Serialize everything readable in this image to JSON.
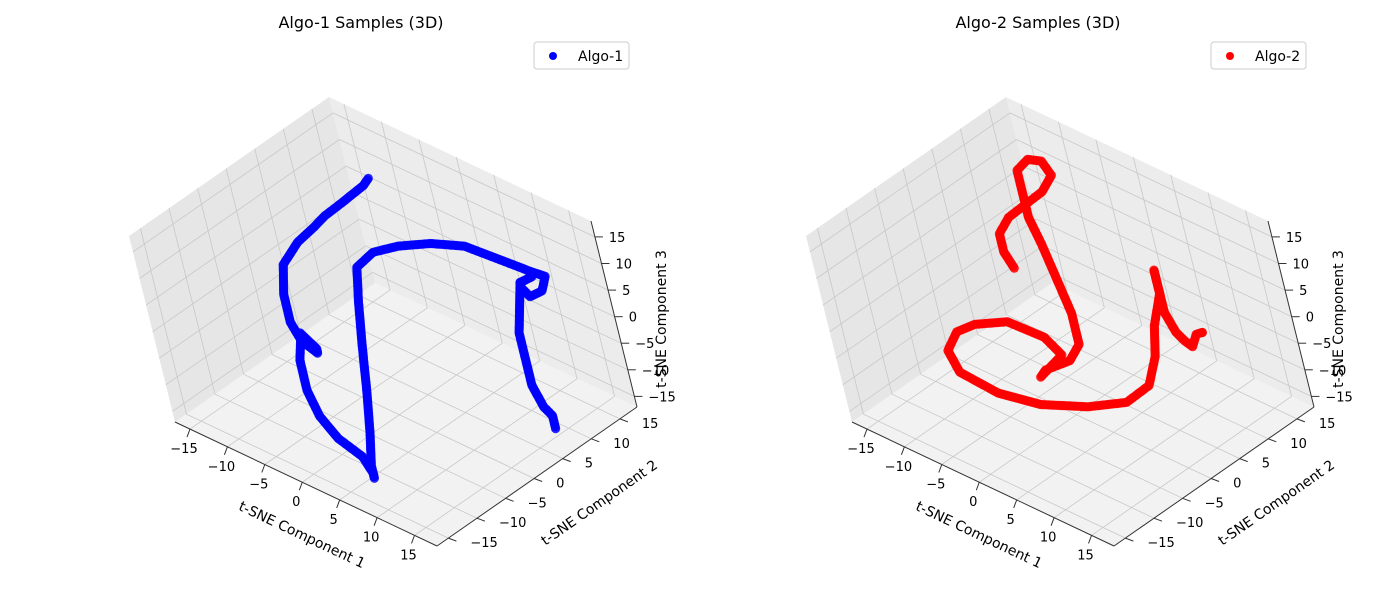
{
  "figure": {
    "background": "#ffffff"
  },
  "chart_data": [
    {
      "type": "scatter",
      "projection": "3d",
      "title": "Algo-1 Samples (3D)",
      "xlabel": "t-SNE Component 1",
      "ylabel": "t-SNE Component 2",
      "zlabel": "t-SNE Component 3",
      "xlim": [
        -17,
        18
      ],
      "ylim": [
        -17,
        18
      ],
      "zlim": [
        -17,
        18
      ],
      "xticks": [
        -15,
        -10,
        -5,
        0,
        5,
        10,
        15
      ],
      "yticks": [
        -15,
        -10,
        -5,
        0,
        5,
        10,
        15
      ],
      "zticks": [
        -15,
        -10,
        -5,
        0,
        5,
        10,
        15
      ],
      "xtick_labels": [
        "−15",
        "−10",
        "−5",
        "0",
        "5",
        "10",
        "15"
      ],
      "ytick_labels": [
        "−15",
        "−10",
        "−5",
        "0",
        "5",
        "10",
        "15"
      ],
      "ztick_labels": [
        "−15",
        "−10",
        "−5",
        "0",
        "5",
        "10",
        "15"
      ],
      "grid": true,
      "legend_position": "top-right",
      "series": [
        {
          "name": "Algo-1",
          "color": "#0000ff",
          "points": [
            [
              -6,
              10,
              16
            ],
            [
              -7,
              10,
              14
            ],
            [
              -9,
              10,
              11
            ],
            [
              -11,
              10,
              8
            ],
            [
              -13,
              9,
              5
            ],
            [
              -14,
              8,
              3
            ],
            [
              -15,
              6,
              1
            ],
            [
              -15,
              3,
              -1
            ],
            [
              -13,
              0,
              -3
            ],
            [
              -10,
              -3,
              -4
            ],
            [
              -7,
              -5,
              -4
            ],
            [
              -5,
              -5,
              -5
            ],
            [
              -7,
              -3,
              -7
            ],
            [
              -10,
              -1,
              -9
            ],
            [
              -13,
              1,
              -11
            ],
            [
              -14,
              2,
              -13
            ],
            [
              -12,
              -1,
              -14
            ],
            [
              -8,
              -5,
              -14
            ],
            [
              -4,
              -8,
              -14
            ],
            [
              0,
              -10,
              -14
            ],
            [
              4,
              -11,
              -14
            ],
            [
              6,
              -12,
              -15
            ],
            [
              6,
              -12,
              -16
            ],
            [
              5,
              -11,
              -15
            ],
            [
              4,
              -9,
              -11
            ],
            [
              2,
              -6,
              -7
            ],
            [
              -1,
              -2,
              -3
            ],
            [
              -4,
              2,
              0
            ],
            [
              -6,
              5,
              3
            ],
            [
              -5,
              7,
              5
            ],
            [
              -3,
              9,
              6
            ],
            [
              0,
              11,
              7
            ],
            [
              3,
              13,
              7
            ],
            [
              5,
              14,
              6
            ],
            [
              7,
              15,
              5
            ],
            [
              9,
              16,
              4
            ],
            [
              10,
              17,
              3
            ],
            [
              10,
              16,
              1
            ],
            [
              9,
              15,
              0
            ],
            [
              8,
              15,
              1
            ],
            [
              8,
              15,
              2
            ],
            [
              9,
              16,
              3
            ],
            [
              8,
              15,
              2
            ],
            [
              8,
              14,
              -2
            ],
            [
              8,
              13,
              -6
            ],
            [
              9,
              12,
              -10
            ],
            [
              9,
              12,
              -12
            ],
            [
              10,
              11,
              -13
            ],
            [
              12,
              10,
              -15
            ],
            [
              13,
              10,
              -16
            ],
            [
              14,
              9,
              -17
            ]
          ]
        }
      ]
    },
    {
      "type": "scatter",
      "projection": "3d",
      "title": "Algo-2 Samples (3D)",
      "xlabel": "t-SNE Component 1",
      "ylabel": "t-SNE Component 2",
      "zlabel": "t-SNE Component 3",
      "xlim": [
        -17,
        18
      ],
      "ylim": [
        -17,
        18
      ],
      "zlim": [
        -17,
        18
      ],
      "xticks": [
        -15,
        -10,
        -5,
        0,
        5,
        10,
        15
      ],
      "yticks": [
        -15,
        -10,
        -5,
        0,
        5,
        10,
        15
      ],
      "zticks": [
        -15,
        -10,
        -5,
        0,
        5,
        10,
        15
      ],
      "xtick_labels": [
        "−15",
        "−10",
        "−5",
        "0",
        "5",
        "10",
        "15"
      ],
      "ytick_labels": [
        "−15",
        "−10",
        "−5",
        "0",
        "5",
        "10",
        "15"
      ],
      "ztick_labels": [
        "−15",
        "−10",
        "−5",
        "0",
        "5",
        "10",
        "15"
      ],
      "grid": true,
      "legend_position": "top-right",
      "series": [
        {
          "name": "Algo-2",
          "color": "#ff0000",
          "points": [
            [
              12,
              10,
              -1
            ],
            [
              12,
              10,
              -1
            ],
            [
              11,
              10,
              -2
            ],
            [
              10,
              10,
              -5
            ],
            [
              8,
              11,
              -6
            ],
            [
              7,
              11,
              -5
            ],
            [
              6,
              11,
              -2
            ],
            [
              6,
              11,
              2
            ],
            [
              6,
              11,
              6
            ],
            [
              7,
              10,
              7
            ],
            [
              7,
              10,
              3
            ],
            [
              6,
              9,
              -3
            ],
            [
              6,
              8,
              -8
            ],
            [
              6,
              6,
              -12
            ],
            [
              4,
              4,
              -15
            ],
            [
              0,
              2,
              -17
            ],
            [
              -4,
              -1,
              -17
            ],
            [
              -8,
              -3,
              -16
            ],
            [
              -12,
              -4,
              -14
            ],
            [
              -14,
              -3,
              -12
            ],
            [
              -14,
              -1,
              -10
            ],
            [
              -12,
              0,
              -8
            ],
            [
              -9,
              2,
              -7
            ],
            [
              -5,
              3,
              -8
            ],
            [
              -3,
              3,
              -10
            ],
            [
              -4,
              2,
              -12
            ],
            [
              -5,
              1,
              -14
            ],
            [
              -4,
              1,
              -12
            ],
            [
              -1,
              2,
              -9
            ],
            [
              0,
              3,
              -6
            ],
            [
              -2,
              5,
              -3
            ],
            [
              -5,
              7,
              0
            ],
            [
              -8,
              9,
              3
            ],
            [
              -10,
              10,
              6
            ],
            [
              -11,
              11,
              9
            ],
            [
              -12,
              12,
              12
            ],
            [
              -11,
              13,
              14
            ],
            [
              -9,
              13,
              15
            ],
            [
              -8,
              13,
              13
            ],
            [
              -9,
              12,
              10
            ],
            [
              -11,
              11,
              7
            ],
            [
              -13,
              10,
              4
            ],
            [
              -14,
              9,
              1
            ],
            [
              -13,
              8,
              -1
            ],
            [
              -11,
              7,
              -2
            ]
          ]
        }
      ]
    }
  ]
}
